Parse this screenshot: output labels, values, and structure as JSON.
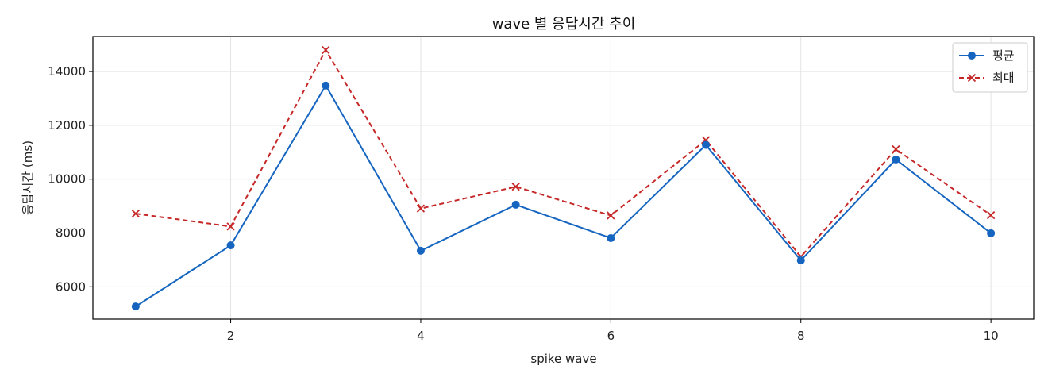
{
  "chart_data": {
    "type": "line",
    "title": "wave 별 응답시간 추이",
    "xlabel": "spike wave",
    "ylabel": "응답시간 (ms)",
    "x": [
      1,
      2,
      3,
      4,
      5,
      6,
      7,
      8,
      9,
      10
    ],
    "xlim": [
      0.55,
      10.45
    ],
    "ylim": [
      4800,
      15300
    ],
    "xticks": [
      2,
      4,
      6,
      8,
      10
    ],
    "yticks": [
      6000,
      8000,
      10000,
      12000,
      14000
    ],
    "grid": true,
    "legend_position": "top-right",
    "series": [
      {
        "name": "평균",
        "color": "#1565c0",
        "marker": "circle",
        "linestyle": "solid",
        "values": [
          5270,
          7540,
          13480,
          7340,
          9050,
          7810,
          11270,
          6980,
          10730,
          7990
        ]
      },
      {
        "name": "최대",
        "color": "#c62828",
        "marker": "x",
        "linestyle": "dashed",
        "values": [
          8720,
          8240,
          14800,
          8910,
          9720,
          8650,
          11450,
          7120,
          11110,
          8660
        ]
      }
    ]
  }
}
